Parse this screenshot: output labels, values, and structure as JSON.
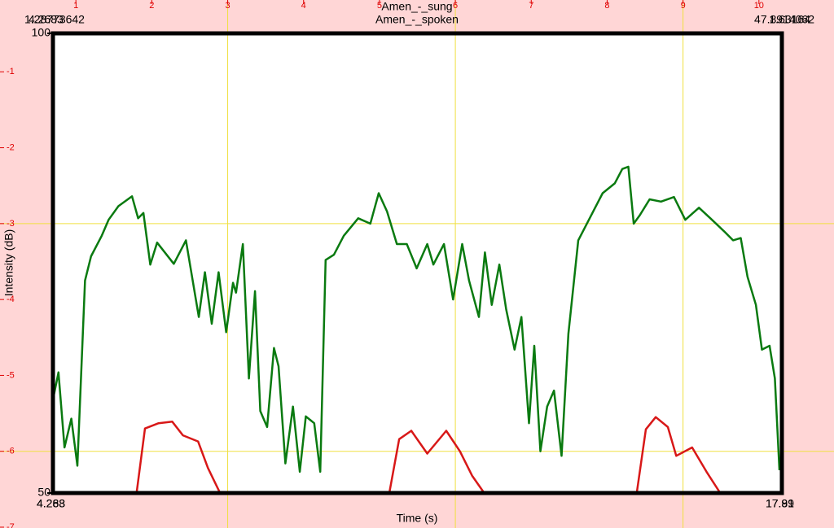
{
  "chart_data": {
    "type": "line",
    "titles": [
      "Amen_-_sung",
      "Amen_-_spoken"
    ],
    "xlim": [
      0,
      11
    ],
    "ylim": [
      0,
      -7
    ],
    "xticks": [
      1,
      2,
      3,
      4,
      5,
      6,
      7,
      8,
      9,
      10
    ],
    "yticks": [
      -1,
      -2,
      -3,
      -4,
      -5,
      -6,
      -7
    ],
    "xgrid": [
      3,
      6,
      9
    ],
    "ygrid": [
      -3,
      -6
    ],
    "inner_axis": {
      "ylim": [
        50,
        100
      ],
      "yticks": [
        50,
        100
      ],
      "ylabel": "Intensity (dB)",
      "xlabel": "Time (s)",
      "top_left": [
        "1.28773642",
        "4.2683"
      ],
      "top_right": [
        "47.8914062",
        "1.63164"
      ],
      "bottom_left": [
        "4.268",
        "4.283"
      ],
      "bottom_right": [
        "17.89",
        "17.91"
      ]
    },
    "series": [
      {
        "color": "#0a7a10",
        "x": [
          0.7,
          0.77,
          0.85,
          0.94,
          1.02,
          1.12,
          1.2,
          1.34,
          1.43,
          1.56,
          1.74,
          1.82,
          1.89,
          1.98,
          2.07,
          2.29,
          2.45,
          2.62,
          2.7,
          2.79,
          2.88,
          2.98,
          3.07,
          3.11,
          3.2,
          3.28,
          3.36,
          3.43,
          3.52,
          3.61,
          3.67,
          3.76,
          3.86,
          3.95,
          4.03,
          4.14,
          4.22,
          4.29,
          4.4,
          4.53,
          4.72,
          4.88,
          4.99,
          5.1,
          5.23,
          5.36,
          5.49,
          5.63,
          5.71,
          5.85,
          5.97,
          6.09,
          6.18,
          6.31,
          6.39,
          6.48,
          6.58,
          6.67,
          6.78,
          6.87,
          6.97,
          7.04,
          7.12,
          7.21,
          7.3,
          7.4,
          7.49,
          7.62,
          7.77,
          7.94,
          8.1,
          8.2,
          8.28,
          8.35,
          8.43,
          8.56,
          8.71,
          8.88,
          9.03,
          9.21,
          9.36,
          9.55,
          9.66,
          9.76,
          9.85,
          9.96,
          10.04,
          10.14,
          10.21,
          10.27
        ],
        "values": [
          -5.31,
          -4.96,
          -5.95,
          -5.57,
          -6.19,
          -3.75,
          -3.43,
          -3.16,
          -2.95,
          -2.77,
          -2.64,
          -2.93,
          -2.86,
          -3.54,
          -3.25,
          -3.53,
          -3.22,
          -4.23,
          -3.64,
          -4.32,
          -3.64,
          -4.43,
          -3.78,
          -3.91,
          -3.27,
          -5.04,
          -3.89,
          -5.47,
          -5.68,
          -4.64,
          -4.88,
          -6.16,
          -5.41,
          -6.27,
          -5.54,
          -5.63,
          -6.27,
          -3.48,
          -3.41,
          -3.16,
          -2.93,
          -3.0,
          -2.6,
          -2.84,
          -3.27,
          -3.27,
          -3.59,
          -3.27,
          -3.54,
          -3.27,
          -4.0,
          -3.27,
          -3.75,
          -4.23,
          -3.38,
          -4.07,
          -3.54,
          -4.13,
          -4.66,
          -4.23,
          -5.63,
          -4.61,
          -6.0,
          -5.41,
          -5.2,
          -6.06,
          -4.45,
          -3.22,
          -2.93,
          -2.6,
          -2.47,
          -2.28,
          -2.25,
          -3.0,
          -2.89,
          -2.68,
          -2.71,
          -2.65,
          -2.95,
          -2.79,
          -2.93,
          -3.11,
          -3.22,
          -3.19,
          -3.7,
          -4.07,
          -4.66,
          -4.61,
          -5.04,
          -6.25
        ]
      },
      {
        "color": "#d81818",
        "x": [
          1.8,
          1.91,
          2.09,
          2.27,
          2.41,
          2.61,
          2.74,
          2.9,
          null,
          5.13,
          5.26,
          5.42,
          5.63,
          5.88,
          6.06,
          6.22,
          6.38,
          null,
          8.39,
          8.51,
          8.64,
          8.8,
          8.91,
          9.12,
          9.31,
          9.49
        ],
        "values": [
          -6.55,
          -5.7,
          -5.63,
          -5.61,
          -5.79,
          -5.87,
          -6.22,
          -6.55,
          null,
          -6.55,
          -5.84,
          -5.73,
          -6.03,
          -5.73,
          -6.0,
          -6.32,
          -6.55,
          null,
          -6.55,
          -5.71,
          -5.55,
          -5.68,
          -6.06,
          -5.95,
          -6.27,
          -6.55
        ]
      }
    ]
  }
}
